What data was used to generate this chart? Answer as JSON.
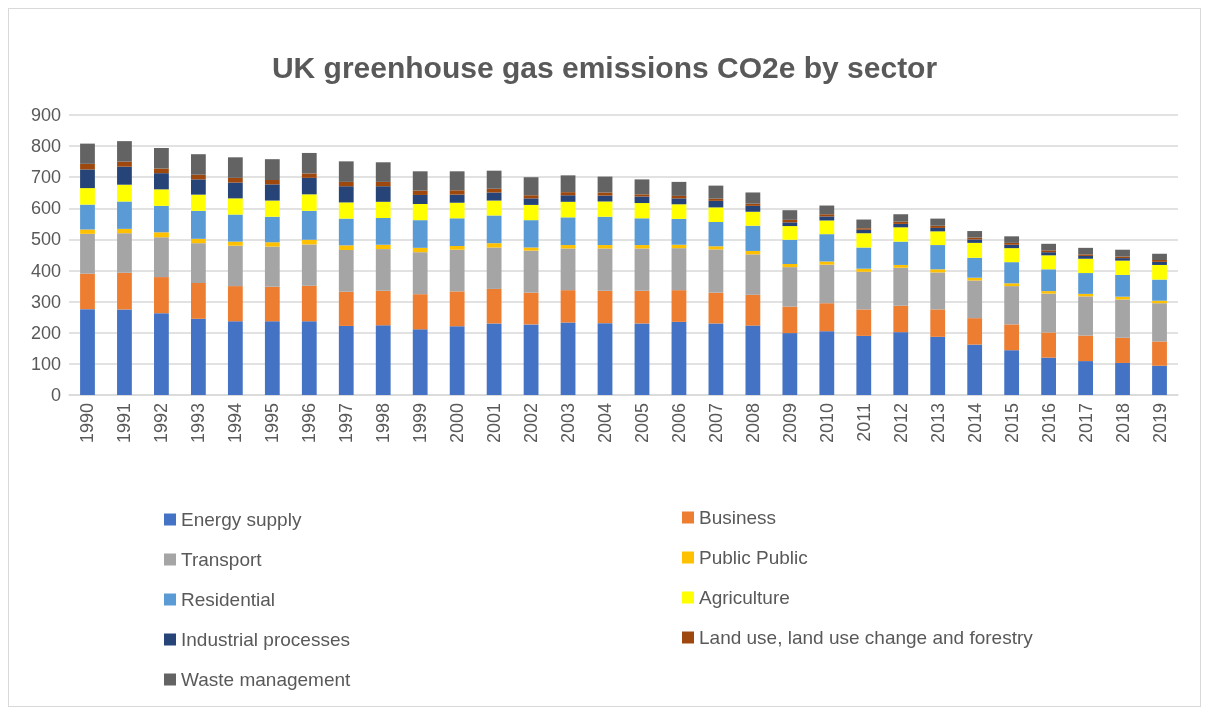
{
  "chart_data": {
    "type": "bar",
    "title": "UK greenhouse gas emissions CO2e by sector",
    "stacked": true,
    "grid": "y",
    "legend": "bottom",
    "categories": [
      "1990",
      "1991",
      "1992",
      "1993",
      "1994",
      "1995",
      "1996",
      "1997",
      "1998",
      "1999",
      "2000",
      "2001",
      "2002",
      "2003",
      "2004",
      "2005",
      "2006",
      "2007",
      "2008",
      "2009",
      "2010",
      "2011",
      "2012",
      "2013",
      "2014",
      "2015",
      "2016",
      "2017",
      "2018",
      "2019"
    ],
    "ylim": [
      0,
      900
    ],
    "yticks": [
      0,
      100,
      200,
      300,
      400,
      500,
      600,
      700,
      800,
      900
    ],
    "series": [
      {
        "name": "Energy supply",
        "color": "#4472c4",
        "values": [
          276,
          275,
          263,
          245,
          237,
          237,
          237,
          222,
          224,
          211,
          221,
          230,
          227,
          233,
          231,
          230,
          235,
          230,
          223,
          199,
          205,
          190,
          202,
          187,
          162,
          144,
          120,
          109,
          103,
          94
        ]
      },
      {
        "name": "Business",
        "color": "#ed7d31",
        "values": [
          114,
          118,
          116,
          115,
          113,
          111,
          114,
          110,
          111,
          113,
          112,
          111,
          102,
          104,
          104,
          105,
          102,
          99,
          99,
          85,
          90,
          85,
          85,
          88,
          85,
          83,
          81,
          82,
          81,
          78
        ]
      },
      {
        "name": "Transport",
        "color": "#a5a5a5",
        "values": [
          128,
          127,
          128,
          128,
          130,
          129,
          133,
          134,
          134,
          135,
          134,
          133,
          135,
          134,
          136,
          136,
          135,
          139,
          130,
          127,
          124,
          121,
          122,
          119,
          121,
          123,
          125,
          126,
          123,
          123
        ]
      },
      {
        "name": "Public Public",
        "color": "#ffc000",
        "values": [
          14,
          14,
          16,
          14,
          13,
          14,
          15,
          15,
          14,
          14,
          12,
          14,
          10,
          11,
          11,
          11,
          11,
          10,
          11,
          10,
          10,
          10,
          9,
          10,
          9,
          9,
          8,
          8,
          9,
          8
        ]
      },
      {
        "name": "Residential",
        "color": "#5b9bd5",
        "values": [
          80,
          88,
          85,
          90,
          87,
          82,
          93,
          86,
          86,
          89,
          89,
          89,
          88,
          89,
          91,
          86,
          83,
          78,
          81,
          78,
          88,
          68,
          75,
          78,
          64,
          68,
          70,
          67,
          70,
          68
        ]
      },
      {
        "name": "Agriculture",
        "color": "#ffff00",
        "values": [
          53,
          54,
          53,
          52,
          52,
          52,
          53,
          52,
          52,
          52,
          50,
          48,
          49,
          50,
          49,
          49,
          47,
          47,
          45,
          44,
          44,
          46,
          46,
          44,
          48,
          45,
          45,
          46,
          46,
          47
        ]
      },
      {
        "name": "Industrial processes",
        "color": "#264478",
        "values": [
          60,
          58,
          52,
          49,
          51,
          52,
          53,
          52,
          50,
          29,
          26,
          26,
          21,
          21,
          19,
          21,
          19,
          21,
          19,
          12,
          13,
          11,
          11,
          11,
          11,
          11,
          10,
          9,
          8,
          10
        ]
      },
      {
        "name": "Land use, land use change and forestry",
        "color": "#9e480e",
        "values": [
          18,
          16,
          15,
          15,
          15,
          14,
          14,
          14,
          14,
          14,
          14,
          12,
          10,
          10,
          10,
          7,
          8,
          7,
          7,
          8,
          7,
          5,
          7,
          7,
          6,
          6,
          6,
          5,
          5,
          6
        ]
      },
      {
        "name": "Waste management",
        "color": "#636363",
        "values": [
          65,
          66,
          66,
          66,
          66,
          67,
          66,
          66,
          63,
          62,
          61,
          58,
          58,
          54,
          51,
          48,
          45,
          42,
          36,
          31,
          28,
          28,
          24,
          23,
          21,
          21,
          21,
          21,
          22,
          20
        ]
      }
    ]
  }
}
